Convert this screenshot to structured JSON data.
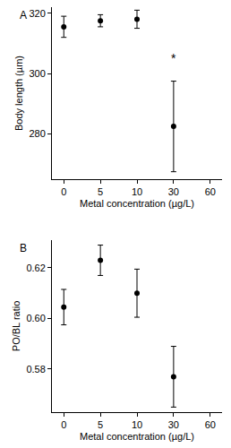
{
  "chart_data": [
    {
      "type": "scatter",
      "title": "A",
      "x_label": "Metal concentration (µg/L)",
      "y_label": "Body length (µm)",
      "categories": [
        "0",
        "5",
        "10",
        "30",
        "60"
      ],
      "values": [
        315.5,
        317.5,
        318,
        282.5,
        null
      ],
      "errors": [
        3.5,
        2,
        3,
        15,
        null
      ],
      "color": "#000000",
      "marker": "circle",
      "ylim": [
        265,
        322
      ],
      "yticks": [
        280,
        300,
        320
      ],
      "annotations": [
        {
          "text": "*",
          "x": "30",
          "y": 302
        }
      ]
    },
    {
      "type": "scatter",
      "title": "B",
      "x_label": "Metal concentration (µg/L)",
      "y_label": "PO/BL ratio",
      "categories": [
        "0",
        "5",
        "10",
        "30",
        "60"
      ],
      "values": [
        0.6045,
        0.623,
        0.61,
        0.577,
        null
      ],
      "errors": [
        0.007,
        0.006,
        0.0095,
        0.012,
        null
      ],
      "color": "#000000",
      "marker": "circle",
      "ylim": [
        0.563,
        0.631
      ],
      "yticks": [
        0.58,
        {
          "value": 0.6,
          "label": "0.60"
        },
        0.62
      ]
    }
  ]
}
